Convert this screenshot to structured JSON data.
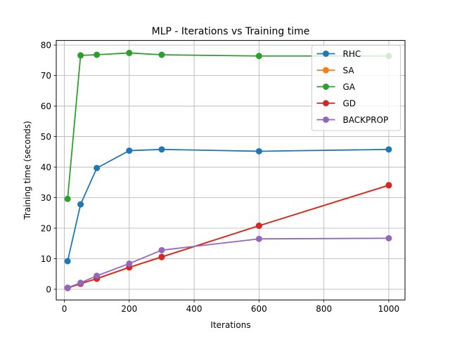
{
  "chart_data": {
    "type": "line",
    "title": "MLP - Iterations vs Training time",
    "xlabel": "Iterations",
    "ylabel": "Training time (seconds)",
    "xlim": [
      -25,
      1050
    ],
    "ylim": [
      -3.5,
      81.5
    ],
    "xticks": [
      0,
      200,
      400,
      600,
      800,
      1000
    ],
    "yticks": [
      0,
      10,
      20,
      30,
      40,
      50,
      60,
      70,
      80
    ],
    "grid": true,
    "legend_position": "top-right",
    "x": [
      10,
      50,
      100,
      200,
      300,
      600,
      1000
    ],
    "series": [
      {
        "name": "RHC",
        "color": "#1f77b4",
        "values": [
          9.2,
          27.8,
          39.7,
          45.4,
          45.8,
          45.2,
          45.8
        ]
      },
      {
        "name": "SA",
        "color": "#ff7f0e",
        "values": [
          0.4,
          1.8,
          3.4,
          7.1,
          10.5,
          20.8,
          34.0
        ]
      },
      {
        "name": "GA",
        "color": "#2ca02c",
        "values": [
          29.6,
          76.6,
          76.8,
          77.4,
          76.8,
          76.4,
          76.4
        ]
      },
      {
        "name": "GD",
        "color": "#d62728",
        "values": [
          0.4,
          1.8,
          3.5,
          7.2,
          10.6,
          20.8,
          34.1
        ]
      },
      {
        "name": "BACKPROP",
        "color": "#9467bd",
        "values": [
          0.5,
          2.1,
          4.4,
          8.4,
          12.8,
          16.5,
          16.7
        ]
      }
    ]
  }
}
